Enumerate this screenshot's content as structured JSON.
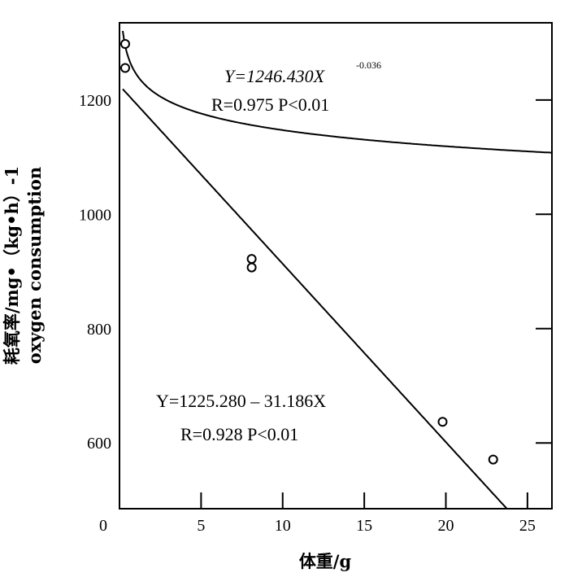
{
  "chart_data": {
    "type": "scatter",
    "xlabel": "体重/g",
    "ylabel": "耗氧率/mg•（kg•h）-1",
    "ylabel2": "oxygen consumption",
    "xlim": [
      0,
      26.5
    ],
    "ylim": [
      485,
      1335
    ],
    "x_ticks": [
      0,
      5,
      10,
      15,
      20,
      25
    ],
    "y_ticks": [
      600,
      800,
      1000,
      1200
    ],
    "points": [
      {
        "x": 0.35,
        "y": 1298
      },
      {
        "x": 0.35,
        "y": 1256
      },
      {
        "x": 8.1,
        "y": 922
      },
      {
        "x": 8.1,
        "y": 907
      },
      {
        "x": 19.8,
        "y": 637
      },
      {
        "x": 22.9,
        "y": 571
      }
    ],
    "curves": [
      {
        "equation_type": "power",
        "a": 1246.43,
        "b": -0.036
      },
      {
        "equation_type": "linear",
        "intercept": 1225.28,
        "slope": -31.186
      }
    ],
    "annotations": {
      "power_eq_main": "Y=1246.430X",
      "power_eq_exp": "-0.036",
      "power_stats": "R=0.975  P<0.01",
      "linear_eq": "Y=1225.280 – 31.186X",
      "linear_stats": "R=0.928  P<0.01"
    }
  }
}
